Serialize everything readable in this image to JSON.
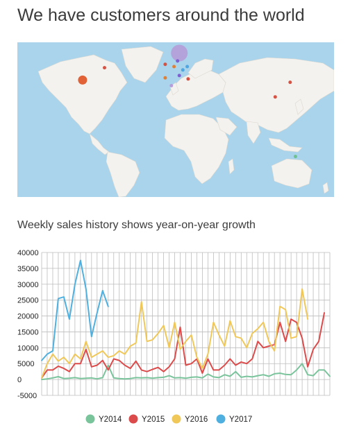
{
  "page": {
    "title": "We have customers around the world",
    "subtitle": "Weekly sales history shows year-on-year growth"
  },
  "map": {
    "ocean_color": "#a9d4ec",
    "land_color": "#f4f2ee",
    "markers": [
      {
        "name": "north-america",
        "lon": -98,
        "lat": 38,
        "size": "large",
        "color": "#e05a2c"
      },
      {
        "name": "europe-north",
        "lon": 12,
        "lat": 62,
        "size": "xlarge",
        "color": "#b69ad8"
      },
      {
        "name": "canada-east",
        "lon": -73,
        "lat": 49,
        "size": "small",
        "color": "#d34a3a"
      },
      {
        "name": "uk",
        "lon": -4,
        "lat": 52,
        "size": "small",
        "color": "#d34a3a"
      },
      {
        "name": "europe-1",
        "lon": 6,
        "lat": 50,
        "size": "small",
        "color": "#e07b2c"
      },
      {
        "name": "europe-2",
        "lon": 10,
        "lat": 55,
        "size": "small",
        "color": "#7a5bd0"
      },
      {
        "name": "europe-3",
        "lon": 16,
        "lat": 47,
        "size": "small",
        "color": "#4aa3df"
      },
      {
        "name": "europe-4",
        "lon": 21,
        "lat": 50,
        "size": "small",
        "color": "#4aa3df"
      },
      {
        "name": "spain",
        "lon": -4,
        "lat": 40,
        "size": "small",
        "color": "#e07b2c"
      },
      {
        "name": "italy",
        "lon": 12,
        "lat": 42,
        "size": "small",
        "color": "#7a5bd0"
      },
      {
        "name": "greece",
        "lon": 22,
        "lat": 39,
        "size": "small",
        "color": "#d34a3a"
      },
      {
        "name": "north-africa",
        "lon": 3,
        "lat": 33,
        "size": "small",
        "color": "#b69ad8"
      },
      {
        "name": "japan",
        "lon": 138,
        "lat": 36,
        "size": "small",
        "color": "#d34a3a"
      },
      {
        "name": "taiwan",
        "lon": 121,
        "lat": 23,
        "size": "small",
        "color": "#d34a3a"
      },
      {
        "name": "australia",
        "lon": 144,
        "lat": -30,
        "size": "small",
        "color": "#6cc08b"
      }
    ]
  },
  "chart_data": {
    "type": "line",
    "title": "Weekly sales history shows year-on-year growth",
    "ylim": [
      -5000,
      40000
    ],
    "yticks": [
      "40000",
      "35000",
      "30000",
      "25000",
      "20000",
      "15000",
      "10000",
      "5000",
      "0",
      "-5000"
    ],
    "grid": true,
    "legend_position": "bottom",
    "x_count": 53,
    "series": [
      {
        "name": "Y2014",
        "color": "#7ac49c",
        "values": [
          0,
          200,
          500,
          900,
          300,
          400,
          600,
          300,
          400,
          500,
          200,
          600,
          4500,
          500,
          300,
          200,
          300,
          600,
          500,
          600,
          400,
          600,
          700,
          1200,
          500,
          600,
          400,
          700,
          800,
          500,
          1700,
          800,
          600,
          1500,
          1000,
          2500,
          700,
          1000,
          800,
          1200,
          1500,
          1000,
          1800,
          2000,
          1600,
          1500,
          3000,
          5000,
          1500,
          1200,
          3000,
          3000,
          1000
        ]
      },
      {
        "name": "Y2015",
        "color": "#db4b4b",
        "values": [
          500,
          3000,
          3000,
          4200,
          3500,
          2500,
          5000,
          5000,
          9500,
          4000,
          4500,
          6000,
          3000,
          6500,
          6000,
          4500,
          3500,
          5800,
          3000,
          2500,
          3200,
          3800,
          2500,
          4000,
          6500,
          16500,
          4500,
          5000,
          6500,
          2000,
          6500,
          3000,
          3000,
          4500,
          6500,
          4500,
          5500,
          5000,
          6500,
          12000,
          10000,
          10500,
          11000,
          18000,
          12000,
          19000,
          18000,
          13000,
          4000,
          9500,
          12000,
          21000
        ]
      },
      {
        "name": "Y2016",
        "color": "#f0c85a",
        "values": [
          500,
          5000,
          8000,
          5800,
          7000,
          5000,
          8000,
          6500,
          12000,
          7000,
          8000,
          9000,
          7000,
          7500,
          9000,
          8000,
          10500,
          11500,
          24500,
          12000,
          12500,
          14500,
          17000,
          10000,
          18000,
          9500,
          12000,
          14000,
          7000,
          3500,
          8000,
          18000,
          14000,
          10500,
          18500,
          13500,
          13000,
          10000,
          14500,
          16000,
          18000,
          12000,
          9000,
          23000,
          22000,
          13000,
          13500,
          28500,
          19000
        ]
      },
      {
        "name": "Y2017",
        "color": "#4fb0e0",
        "values": [
          6000,
          8000,
          9000,
          25500,
          26000,
          19000,
          30000,
          37500,
          28500,
          13500,
          21000,
          28000,
          23000
        ]
      }
    ]
  },
  "icons": {
    "legend_marker": "circle"
  }
}
